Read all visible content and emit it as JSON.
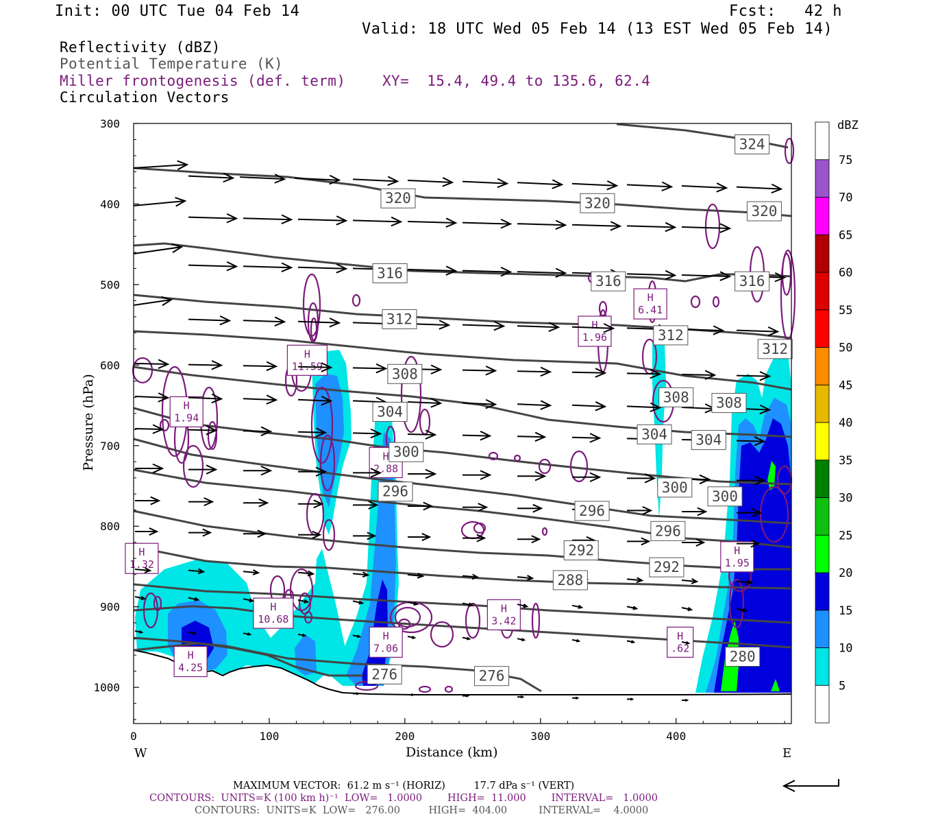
{
  "header": {
    "init": "Init: 00 UTC Tue 04 Feb 14",
    "fcst": "Fcst:   42 h",
    "valid": "Valid: 18 UTC Wed 05 Feb 14 (13 EST Wed 05 Feb 14)"
  },
  "legend": {
    "reflectivity": "Reflectivity (dBZ)",
    "theta": "Potential Temperature (K)",
    "frontogenesis": "Miller frontogenesis (def. term)",
    "xy": "XY=  15.4, 49.4 to 135.6, 62.4",
    "vectors": "Circulation Vectors"
  },
  "colors": {
    "frontogenesis": "#7a1a7a",
    "theta": "#444444",
    "vectors": "#000000"
  },
  "chart_data": {
    "type": "cross-section",
    "xlabel": "Distance (km)",
    "ylabel": "Pressure (hPa)",
    "xlim": [
      0,
      485
    ],
    "ylim": [
      1045,
      300
    ],
    "x_ticks": [
      0,
      100,
      200,
      300,
      400
    ],
    "y_ticks": [
      300,
      400,
      500,
      600,
      700,
      800,
      900,
      1000
    ],
    "x_end_labels": {
      "left": "W",
      "right": "E"
    },
    "colorbar": {
      "title": "dBZ",
      "levels": [
        5,
        10,
        15,
        20,
        25,
        30,
        35,
        40,
        45,
        50,
        55,
        60,
        65,
        70,
        75
      ],
      "colors": [
        "#ffffff",
        "#00e5e5",
        "#1e90ff",
        "#0000dd",
        "#00ff00",
        "#10c010",
        "#008000",
        "#ffff00",
        "#e6b800",
        "#ff8c00",
        "#ff0000",
        "#dd0000",
        "#b00000",
        "#ff00ff",
        "#9955cc",
        "#ffffff"
      ]
    },
    "theta_labels": [
      {
        "text": "324",
        "x": 456,
        "p": 326
      },
      {
        "text": "320",
        "x": 195,
        "p": 393
      },
      {
        "text": "320",
        "x": 342,
        "p": 399
      },
      {
        "text": "320",
        "x": 465,
        "p": 409
      },
      {
        "text": "316",
        "x": 189,
        "p": 486
      },
      {
        "text": "316",
        "x": 350,
        "p": 496
      },
      {
        "text": "316",
        "x": 456,
        "p": 496
      },
      {
        "text": "312",
        "x": 196,
        "p": 543
      },
      {
        "text": "312",
        "x": 396,
        "p": 563
      },
      {
        "text": "312",
        "x": 473,
        "p": 580
      },
      {
        "text": "308",
        "x": 200,
        "p": 611
      },
      {
        "text": "308",
        "x": 400,
        "p": 640
      },
      {
        "text": "308",
        "x": 439,
        "p": 647
      },
      {
        "text": "304",
        "x": 189,
        "p": 658
      },
      {
        "text": "304",
        "x": 384,
        "p": 686
      },
      {
        "text": "304",
        "x": 424,
        "p": 693
      },
      {
        "text": "300",
        "x": 201,
        "p": 708
      },
      {
        "text": "300",
        "x": 399,
        "p": 752
      },
      {
        "text": "300",
        "x": 436,
        "p": 763
      },
      {
        "text": "296",
        "x": 193,
        "p": 757
      },
      {
        "text": "296",
        "x": 338,
        "p": 781
      },
      {
        "text": "296",
        "x": 394,
        "p": 806
      },
      {
        "text": "292",
        "x": 330,
        "p": 830
      },
      {
        "text": "292",
        "x": 393,
        "p": 851
      },
      {
        "text": "288",
        "x": 322,
        "p": 867
      },
      {
        "text": "280",
        "x": 449,
        "p": 962
      },
      {
        "text": "276",
        "x": 185,
        "p": 984
      },
      {
        "text": "276",
        "x": 264,
        "p": 986
      }
    ],
    "frontogenesis_maxima": [
      {
        "label": "H",
        "value": "1.94",
        "x": 39,
        "p": 658
      },
      {
        "label": "H",
        "value": "11.59",
        "x": 128,
        "p": 594
      },
      {
        "label": "H",
        "value": "2.88",
        "x": 186,
        "p": 721
      },
      {
        "label": "H",
        "value": "1.96",
        "x": 340,
        "p": 558
      },
      {
        "label": "H",
        "value": "6.41",
        "x": 381,
        "p": 524
      },
      {
        "label": "H",
        "value": "1.32",
        "x": 6,
        "p": 840
      },
      {
        "label": "H",
        "value": "10.68",
        "x": 103,
        "p": 908
      },
      {
        "label": "H",
        "value": "7.06",
        "x": 186,
        "p": 944
      },
      {
        "label": "H",
        "value": "3.42",
        "x": 273,
        "p": 910
      },
      {
        "label": "H",
        "value": "4.25",
        "x": 42,
        "p": 968
      },
      {
        "label": "H",
        "value": ".62",
        "x": 403,
        "p": 944
      },
      {
        "label": "H",
        "value": "1.95",
        "x": 445,
        "p": 838
      }
    ]
  },
  "footer": {
    "max_vector": "MAXIMUM VECTOR:  61.2 m s⁻¹ (HORIZ)         17.7 dPa s⁻¹ (VERT)",
    "contours_fronto": "CONTOURS:  UNITS=K (100 km h)⁻¹  LOW=   1.0000        HIGH=  11.000        INTERVAL=   1.0000",
    "contours_theta": "CONTOURS:  UNITS=K  LOW=   276.00         HIGH=  404.00          INTERVAL=    4.0000"
  }
}
